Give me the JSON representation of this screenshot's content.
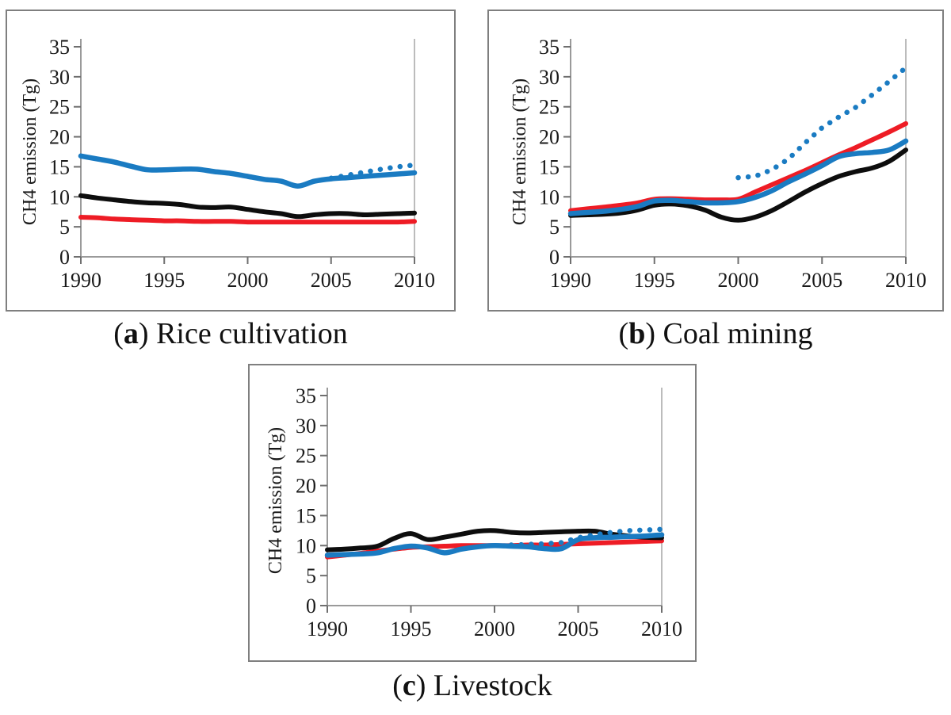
{
  "figure": {
    "captions": [
      {
        "pre": "(",
        "letter": "a",
        "post": ") ",
        "label": "Rice cultivation"
      },
      {
        "pre": "(",
        "letter": "b",
        "post": ") ",
        "label": "Coal mining"
      },
      {
        "pre": "(",
        "letter": "c",
        "post": ") ",
        "label": "Livestock"
      }
    ]
  },
  "colors": {
    "blue": "#1a7bc2",
    "red": "#ee1c25",
    "black": "#0d0d0d",
    "panel_border": "#7f7f7f",
    "axis_line": "#9a9a9a",
    "tick_mark": "#6f6f6f",
    "plot_border": "#bcbcbc",
    "tick_text": "#1a1a1a"
  },
  "chart_data": [
    {
      "id": "a",
      "type": "line",
      "title": "Rice cultivation",
      "ylabel": "CH4 emission (Tg)",
      "ylim": [
        0,
        35
      ],
      "yticks": [
        0,
        5,
        10,
        15,
        20,
        25,
        30,
        35
      ],
      "xlim": [
        1990,
        2010
      ],
      "xticks": [
        1990,
        1995,
        2000,
        2005,
        2010
      ],
      "grid": false,
      "legend": "none",
      "x": [
        1990,
        1991,
        1992,
        1993,
        1994,
        1995,
        1996,
        1997,
        1998,
        1999,
        2000,
        2001,
        2002,
        2003,
        2004,
        2005,
        2006,
        2007,
        2008,
        2009,
        2010
      ],
      "series": [
        {
          "name": "red-solid",
          "color_key": "red",
          "style": "solid",
          "values": [
            6.6,
            6.5,
            6.3,
            6.2,
            6.1,
            6.0,
            6.0,
            5.9,
            5.9,
            5.9,
            5.8,
            5.8,
            5.8,
            5.8,
            5.8,
            5.8,
            5.8,
            5.8,
            5.8,
            5.8,
            5.9
          ]
        },
        {
          "name": "black-solid",
          "color_key": "black",
          "style": "solid",
          "values": [
            10.2,
            9.8,
            9.5,
            9.2,
            9.0,
            8.9,
            8.7,
            8.3,
            8.2,
            8.3,
            7.9,
            7.5,
            7.2,
            6.7,
            7.0,
            7.2,
            7.2,
            7.0,
            7.1,
            7.2,
            7.3
          ]
        },
        {
          "name": "blue-solid",
          "color_key": "blue",
          "style": "solid",
          "values": [
            16.8,
            16.3,
            15.8,
            15.1,
            14.5,
            14.5,
            14.6,
            14.6,
            14.2,
            13.9,
            13.4,
            12.9,
            12.6,
            11.8,
            12.6,
            13.0,
            13.2,
            13.4,
            13.6,
            13.8,
            14.0
          ]
        },
        {
          "name": "blue-dotted",
          "color_key": "blue",
          "style": "dotted",
          "x": [
            2005,
            2006,
            2007,
            2008,
            2009,
            2010
          ],
          "values": [
            13.1,
            13.6,
            14.1,
            14.6,
            15.0,
            15.3
          ]
        }
      ]
    },
    {
      "id": "b",
      "type": "line",
      "title": "Coal mining",
      "ylabel": "CH4 emission (Tg)",
      "ylim": [
        0,
        35
      ],
      "yticks": [
        0,
        5,
        10,
        15,
        20,
        25,
        30,
        35
      ],
      "xlim": [
        1990,
        2010
      ],
      "xticks": [
        1990,
        1995,
        2000,
        2005,
        2010
      ],
      "grid": false,
      "legend": "none",
      "x": [
        1990,
        1991,
        1992,
        1993,
        1994,
        1995,
        1996,
        1997,
        1998,
        1999,
        2000,
        2001,
        2002,
        2003,
        2004,
        2005,
        2006,
        2007,
        2008,
        2009,
        2010
      ],
      "series": [
        {
          "name": "red-solid",
          "color_key": "red",
          "style": "solid",
          "values": [
            7.7,
            8.0,
            8.3,
            8.6,
            9.0,
            9.6,
            9.7,
            9.6,
            9.5,
            9.5,
            9.6,
            10.8,
            12.0,
            13.2,
            14.4,
            15.7,
            17.0,
            18.2,
            19.5,
            20.8,
            22.2
          ]
        },
        {
          "name": "black-solid",
          "color_key": "black",
          "style": "solid",
          "values": [
            6.9,
            7.0,
            7.1,
            7.3,
            7.8,
            8.6,
            8.8,
            8.5,
            7.8,
            6.6,
            6.1,
            6.6,
            7.7,
            9.2,
            10.8,
            12.2,
            13.4,
            14.2,
            14.8,
            15.9,
            17.8
          ]
        },
        {
          "name": "blue-solid",
          "color_key": "blue",
          "style": "solid",
          "values": [
            7.2,
            7.4,
            7.6,
            7.9,
            8.4,
            9.3,
            9.4,
            9.2,
            9.0,
            9.0,
            9.2,
            9.9,
            11.0,
            12.5,
            13.8,
            15.2,
            16.7,
            17.2,
            17.4,
            17.8,
            19.3
          ]
        },
        {
          "name": "blue-dotted",
          "color_key": "blue",
          "style": "dotted",
          "x": [
            2000,
            2001,
            2002,
            2003,
            2004,
            2005,
            2006,
            2007,
            2008,
            2009,
            2010
          ],
          "values": [
            13.2,
            13.4,
            14.5,
            16.3,
            19.0,
            21.5,
            23.3,
            24.9,
            27.0,
            29.2,
            31.5
          ]
        }
      ]
    },
    {
      "id": "c",
      "type": "line",
      "title": "Livestock",
      "ylabel": "CH4 emission (Tg)",
      "ylim": [
        0,
        35
      ],
      "yticks": [
        0,
        5,
        10,
        15,
        20,
        25,
        30,
        35
      ],
      "xlim": [
        1990,
        2010
      ],
      "xticks": [
        1990,
        1995,
        2000,
        2005,
        2010
      ],
      "grid": false,
      "legend": "none",
      "x": [
        1990,
        1991,
        1992,
        1993,
        1994,
        1995,
        1996,
        1997,
        1998,
        1999,
        2000,
        2001,
        2002,
        2003,
        2004,
        2005,
        2006,
        2007,
        2008,
        2009,
        2010
      ],
      "series": [
        {
          "name": "red-solid",
          "color_key": "red",
          "style": "solid",
          "values": [
            8.1,
            8.4,
            8.7,
            9.1,
            9.4,
            9.7,
            9.8,
            9.9,
            10.0,
            10.0,
            10.0,
            10.0,
            10.1,
            10.1,
            10.2,
            10.3,
            10.4,
            10.5,
            10.6,
            10.7,
            10.8
          ]
        },
        {
          "name": "black-solid",
          "color_key": "black",
          "style": "solid",
          "values": [
            9.3,
            9.4,
            9.6,
            9.9,
            11.2,
            12.0,
            11.0,
            11.4,
            11.9,
            12.4,
            12.5,
            12.2,
            12.1,
            12.2,
            12.3,
            12.4,
            12.4,
            11.9,
            11.6,
            11.4,
            11.3
          ]
        },
        {
          "name": "blue-solid",
          "color_key": "blue",
          "style": "solid",
          "values": [
            8.4,
            8.5,
            8.6,
            8.8,
            9.5,
            9.9,
            9.6,
            8.8,
            9.4,
            9.8,
            10.0,
            9.9,
            9.8,
            9.5,
            9.5,
            11.0,
            11.3,
            11.4,
            11.5,
            11.6,
            11.8
          ]
        },
        {
          "name": "blue-dotted",
          "color_key": "blue",
          "style": "dotted",
          "x": [
            2001,
            2002,
            2003,
            2004,
            2005,
            2006,
            2007,
            2008,
            2009,
            2010
          ],
          "values": [
            10.1,
            10.2,
            10.3,
            10.5,
            11.3,
            11.8,
            12.2,
            12.5,
            12.6,
            12.7
          ]
        }
      ]
    }
  ]
}
